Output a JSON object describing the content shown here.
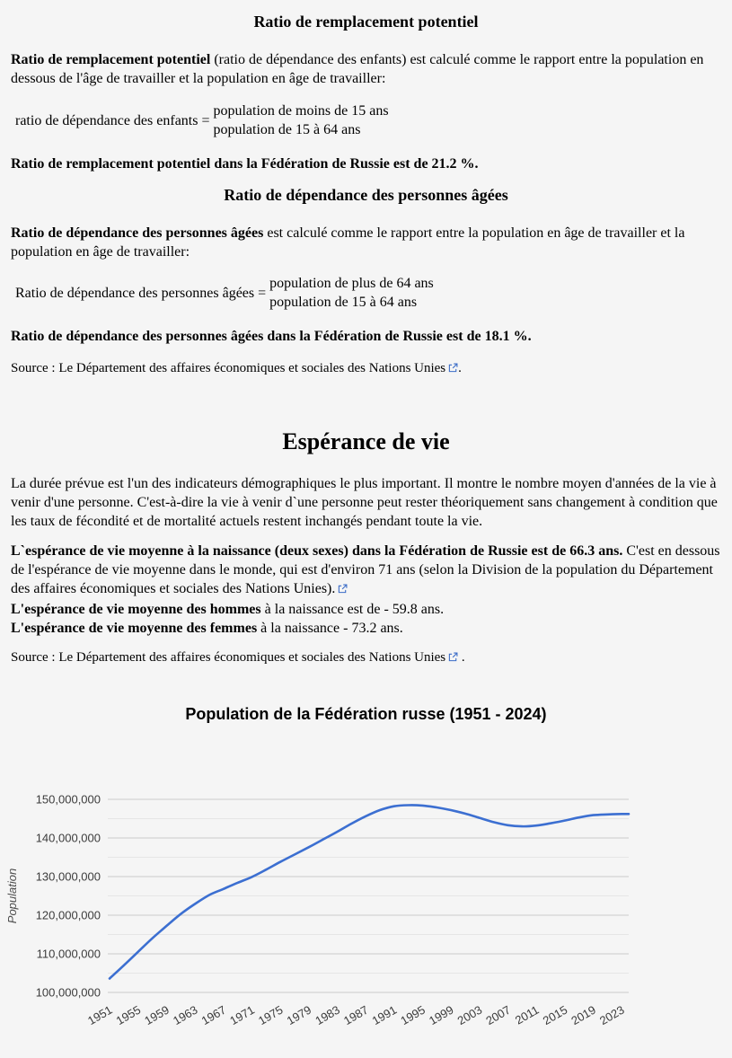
{
  "page": {
    "background": "#f5f5f5",
    "link_icon_color": "#3b6cc7"
  },
  "sections": {
    "replacement": {
      "title": "Ratio de remplacement potentiel",
      "desc_bold": "Ratio de remplacement potentiel",
      "desc_rest": " (ratio de dépendance des enfants) est calculé comme le rapport entre la population en dessous de l'âge de travailler et la population en âge de travailler:",
      "formula_label": "ratio de dépendance des enfants =",
      "formula_numerator": "population de moins de 15 ans",
      "formula_denominator": "population de 15 à 64 ans",
      "result": "Ratio de remplacement potentiel dans la Fédération de Russie est de 21.2 %."
    },
    "elderly": {
      "title": "Ratio de dépendance des personnes âgées",
      "desc_bold": "Ratio de dépendance des personnes âgées",
      "desc_rest": " est calculé comme le rapport entre la population en âge de travailler et la population en âge de travailler:",
      "formula_label": "Ratio de dépendance des personnes âgées =",
      "formula_numerator": "population de plus de 64 ans",
      "formula_denominator": "population de 15 à 64 ans",
      "result": "Ratio de dépendance des personnes âgées dans la Fédération de Russie est de 18.1 %.",
      "source_prefix": "Source : Le Département des affaires économiques et sociales des Nations Unies",
      "source_suffix": "."
    },
    "life": {
      "title": "Espérance de vie",
      "p1": "La durée prévue est l'un des indicateurs démographiques le plus important. Il montre le nombre moyen d'années de la vie à venir d'une personne. C'est-à-dire la vie à venir d`une personne peut rester théoriquement sans changement à condition que les taux de fécondité et de mortalité actuels restent inchangés pendant toute la vie.",
      "p2_bold": "L`espérance de vie moyenne à la naissance (deux sexes) dans la Fédération de Russie est de 66.3 ans.",
      "p2_rest": " C'est en dessous de l'espérance de vie moyenne dans le monde, qui est d'environ 71 ans (selon la Division de la population du Département des affaires économiques et sociales des Nations Unies).",
      "men_bold": "L'espérance de vie moyenne des hommes",
      "men_rest": " à la naissance est de - 59.8 ans.",
      "women_bold": "L'espérance de vie moyenne des femmes",
      "women_rest": " à la naissance - 73.2 ans.",
      "source_prefix": "Source : Le Département des affaires économiques et sociales des Nations Unies",
      "source_suffix": " ."
    }
  },
  "chart_data": {
    "type": "line",
    "title": "Population de la Fédération russe (1951 - 2024)",
    "xlabel": "",
    "ylabel": "Population",
    "xlim": [
      1951,
      2024
    ],
    "ylim": [
      100000000,
      150000000
    ],
    "grid": "horizontal major every 10,000,000 with minor lines every 5,000,000, legend none",
    "x_ticks": [
      1951,
      1955,
      1959,
      1963,
      1967,
      1971,
      1975,
      1979,
      1983,
      1987,
      1991,
      1995,
      1999,
      2003,
      2007,
      2011,
      2015,
      2019,
      2023
    ],
    "y_ticks": [
      100000000,
      110000000,
      120000000,
      130000000,
      140000000,
      150000000
    ],
    "y_tick_labels": [
      "100,000,000",
      "110,000,000",
      "120,000,000",
      "130,000,000",
      "140,000,000",
      "150,000,000"
    ],
    "series": [
      {
        "name": "Population",
        "color": "#3c6fd1",
        "x": [
          1951,
          1953,
          1955,
          1957,
          1959,
          1961,
          1963,
          1965,
          1967,
          1969,
          1971,
          1973,
          1975,
          1977,
          1979,
          1981,
          1983,
          1985,
          1987,
          1989,
          1991,
          1993,
          1995,
          1997,
          1999,
          2001,
          2003,
          2005,
          2007,
          2009,
          2011,
          2013,
          2015,
          2017,
          2019,
          2021,
          2023,
          2024
        ],
        "values": [
          103600000,
          107000000,
          110500000,
          114000000,
          117200000,
          120300000,
          122900000,
          125200000,
          126800000,
          128400000,
          129900000,
          131800000,
          133800000,
          135700000,
          137600000,
          139600000,
          141600000,
          143700000,
          145600000,
          147200000,
          148200000,
          148500000,
          148400000,
          147900000,
          147200000,
          146300000,
          145200000,
          144100000,
          143300000,
          143000000,
          143200000,
          143800000,
          144500000,
          145300000,
          145900000,
          146100000,
          146200000,
          146200000
        ]
      }
    ],
    "colors": {
      "grid_major": "#cccccc",
      "grid_minor": "#e6e6e6",
      "axis_text": "#3c3c3c"
    }
  }
}
